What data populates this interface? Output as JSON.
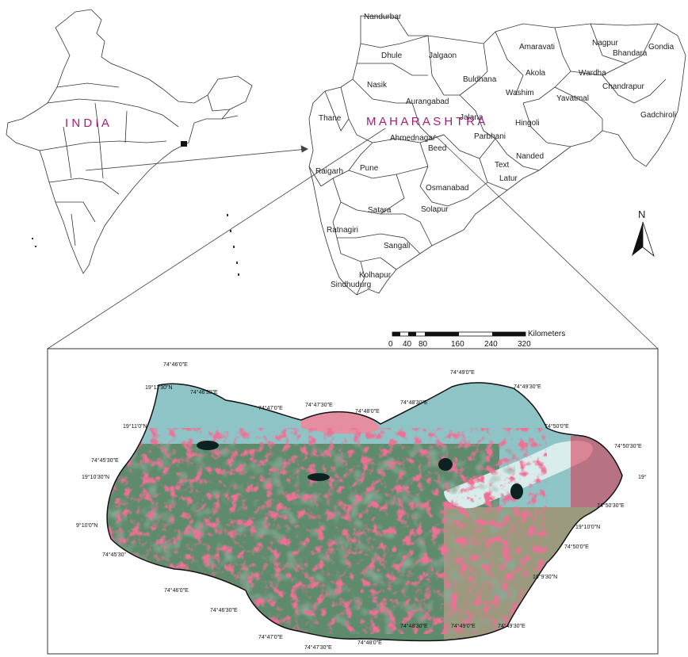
{
  "india_label": "I N D I A",
  "state_label": "M A H A R A S H T R A",
  "north_label": "N",
  "districts": [
    "Nandurbar",
    "Dhule",
    "Jalgaon",
    "Amaravati",
    "Nagpur",
    "Bhandara",
    "Gondia",
    "Nasik",
    "Buldhana",
    "Akola",
    "Wardha",
    "Washim",
    "Chandrapur",
    "Yavatmal",
    "Aurangabad",
    "Jalana",
    "Hingoli",
    "Thane",
    "Ahmednagar",
    "Parbhani",
    "Gadchiroli",
    "Beed",
    "Nanded",
    "Text",
    "Raigarh",
    "Pune",
    "Latur",
    "Osmanabad",
    "Satara",
    "Solapur",
    "Ratnagiri",
    "Sangali",
    "Kolhapur",
    "Sindhudurg"
  ],
  "scale_bar": {
    "unit": "Kilometers",
    "ticks": [
      "0",
      "40",
      "80",
      "160",
      "240",
      "320"
    ]
  },
  "coordinate_labels": [
    "74°46'0\"E",
    "19°11'30\"N",
    "74°46'30\"E",
    "19°11'0\"N",
    "74°47'0\"E",
    "74°47'30\"E",
    "74°48'0\"E",
    "74°48'30\"E",
    "74°49'0\"E",
    "74°49'30\"E",
    "74°50'0\"E",
    "74°50'30\"E",
    "74°45'30\"E",
    "19°10'30\"N",
    "19°",
    "74°50'30\"E",
    "19°10'0\"N",
    "9°10'0\"N",
    "74°45'30\"",
    "74°50'0\"E",
    "74°46'0\"E",
    "19°9'30\"N",
    "74°46'30\"E",
    "74°47'0\"E",
    "74°47'30\"E",
    "74°48'0\"E",
    "74°48'30\"E",
    "74°49'0\"E",
    "74°49'30\"E"
  ],
  "colors": {
    "highlight_label": "#a0217a",
    "image_cyan": "#8fc4c6",
    "image_red": "#d8324f",
    "image_green": "#3f6a4e"
  }
}
